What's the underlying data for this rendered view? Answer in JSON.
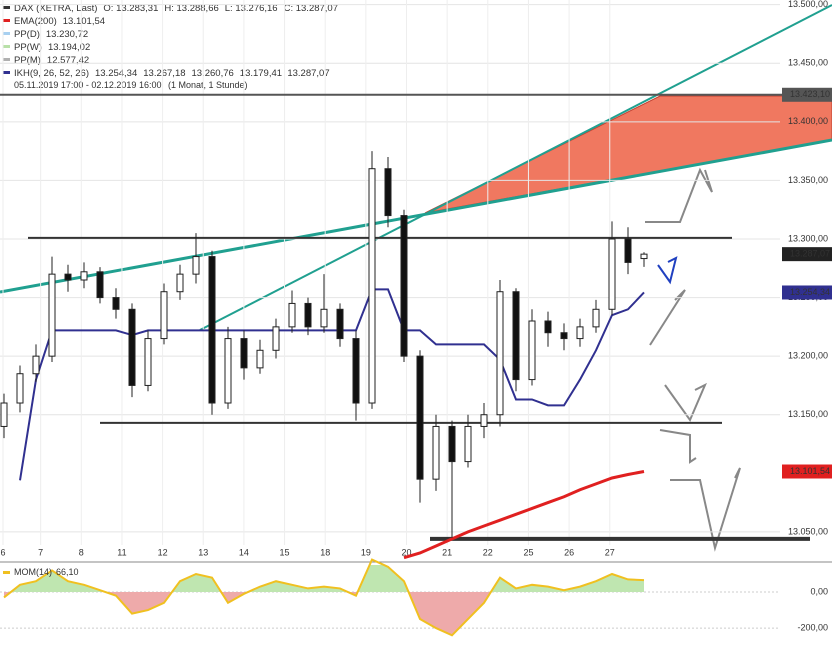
{
  "chart_data": {
    "type": "candlestick",
    "legend": [
      {
        "name": "DAX (XETRA, Last)",
        "color": "#333333",
        "values": [
          "O: 13.283,31",
          "H: 13.288,66",
          "L: 13.276,16",
          "C: 13.287,07"
        ]
      },
      {
        "name": "EMA(200)",
        "color": "#e02020",
        "values": [
          "13.101,54"
        ],
        "line": [
          null,
          null,
          null,
          null,
          null,
          null,
          null,
          null,
          null,
          null,
          null,
          null,
          null,
          null,
          null,
          null,
          null,
          null,
          null,
          null,
          null,
          null,
          null,
          null,
          null,
          13028,
          13032,
          13038,
          13044,
          13050,
          13055,
          13060,
          13065,
          13070,
          13075,
          13080,
          13086,
          13091,
          13096,
          13099,
          13101.54
        ]
      },
      {
        "name": "PP(D)",
        "color": "#a8d0f0",
        "values": [
          "13.230,72"
        ]
      },
      {
        "name": "PP(W)",
        "color": "#b8e0a8",
        "values": [
          "13.194,02"
        ]
      },
      {
        "name": "PP(M)",
        "color": "#b0b0b0",
        "values": [
          "12.577,42"
        ]
      },
      {
        "name": "IKH(9, 26, 52, 26)",
        "color": "#303090",
        "values": [
          "13.254,34",
          "13.267,18",
          "13.260,76",
          "13.179,41",
          "13.287,07"
        ],
        "line": [
          null,
          13094,
          13180,
          13222,
          13222,
          13222,
          13222,
          13222,
          13218,
          13222,
          13222,
          13222,
          13222,
          13222,
          13222,
          13222,
          13222,
          13222,
          13222,
          13222,
          13222,
          13222,
          13222,
          13257,
          13257,
          13222,
          13222,
          13210,
          13210,
          13210,
          13210,
          13197,
          13163,
          13163,
          13158,
          13158,
          13180,
          13205,
          13235,
          13240,
          13254.34
        ]
      }
    ],
    "period": "05.11.2019 17:00 - 02.12.2019 16:00",
    "period_note": "(1 Monat, 1 Stunde)",
    "x_labels": [
      "6",
      "7",
      "8",
      "11",
      "12",
      "13",
      "14",
      "15",
      "18",
      "19",
      "20",
      "21",
      "22",
      "25",
      "26",
      "27"
    ],
    "open": [
      13140,
      13160,
      13185,
      13200,
      13270,
      13265,
      13272,
      13250,
      13240,
      13175,
      13215,
      13255,
      13270,
      13285,
      13160,
      13215,
      13190,
      13205,
      13225,
      13245,
      13225,
      13240,
      13215,
      13160,
      13360,
      13320,
      13200,
      13095,
      13140,
      13110,
      13140,
      13150,
      13255,
      13180,
      13230,
      13220,
      13215,
      13225,
      13240,
      13300,
      13283.31
    ],
    "high": [
      13168,
      13192,
      13210,
      13285,
      13278,
      13280,
      13276,
      13258,
      13245,
      13222,
      13262,
      13278,
      13305,
      13290,
      13225,
      13222,
      13214,
      13232,
      13256,
      13250,
      13270,
      13245,
      13222,
      13375,
      13370,
      13325,
      13205,
      13150,
      13145,
      13150,
      13160,
      13265,
      13258,
      13240,
      13238,
      13228,
      13232,
      13248,
      13315,
      13310,
      13288.66
    ],
    "low": [
      13130,
      13152,
      13178,
      13195,
      13255,
      13258,
      13245,
      13232,
      13165,
      13170,
      13210,
      13248,
      13262,
      13150,
      13155,
      13180,
      13185,
      13198,
      13220,
      13218,
      13220,
      13208,
      13145,
      13155,
      13310,
      13195,
      13075,
      13085,
      13045,
      13105,
      13130,
      13140,
      13170,
      13175,
      13208,
      13205,
      13208,
      13220,
      13235,
      13270,
      13276.16
    ],
    "close": [
      13160,
      13185,
      13200,
      13270,
      13265,
      13272,
      13250,
      13240,
      13175,
      13215,
      13255,
      13270,
      13285,
      13160,
      13215,
      13190,
      13205,
      13225,
      13245,
      13225,
      13240,
      13215,
      13160,
      13360,
      13320,
      13200,
      13095,
      13140,
      13110,
      13140,
      13150,
      13255,
      13180,
      13230,
      13220,
      13215,
      13225,
      13240,
      13300,
      13280,
      13287.07
    ],
    "up_color": "#ffffff",
    "down_color": "#111111",
    "ylim": [
      13026,
      13504
    ],
    "yticks": [
      {
        "value": 13500,
        "label": "13.500,00"
      },
      {
        "value": 13450,
        "label": "13.450,00"
      },
      {
        "value": 13400,
        "label": "13.400,00"
      },
      {
        "value": 13350,
        "label": "13.350,00"
      },
      {
        "value": 13300,
        "label": "13.300,00"
      },
      {
        "value": 13250,
        "label": "13.250,00"
      },
      {
        "value": 13200,
        "label": "13.200,00"
      },
      {
        "value": 13150,
        "label": "13.150,00"
      },
      {
        "value": 13050,
        "label": "13.050,00"
      }
    ],
    "hlines": [
      13301,
      13143,
      13044
    ],
    "price_markers": [
      {
        "value": 13423.1,
        "label": "13.423,10",
        "color": "#555555"
      },
      {
        "value": 13287.07,
        "label": "13.287,07",
        "color": "#222222"
      },
      {
        "value": 13254.34,
        "label": "13.254,34",
        "color": "#303090"
      },
      {
        "value": 13101.54,
        "label": "13.101,54",
        "color": "#e02020"
      }
    ],
    "momentum": {
      "name": "MOM(14)",
      "value_label": "66,10",
      "color": "#f0c020",
      "values": [
        -30,
        40,
        60,
        120,
        60,
        40,
        10,
        -20,
        -120,
        -100,
        -60,
        60,
        100,
        80,
        -60,
        -10,
        30,
        60,
        40,
        20,
        30,
        20,
        -20,
        180,
        140,
        60,
        -150,
        -200,
        -240,
        -150,
        -60,
        80,
        20,
        40,
        30,
        10,
        30,
        60,
        100,
        70,
        66.1
      ],
      "ylim": [
        -294,
        150
      ],
      "yticks": [
        {
          "value": 0,
          "label": "0,00"
        },
        {
          "value": -200,
          "label": "-200,00"
        }
      ]
    }
  }
}
